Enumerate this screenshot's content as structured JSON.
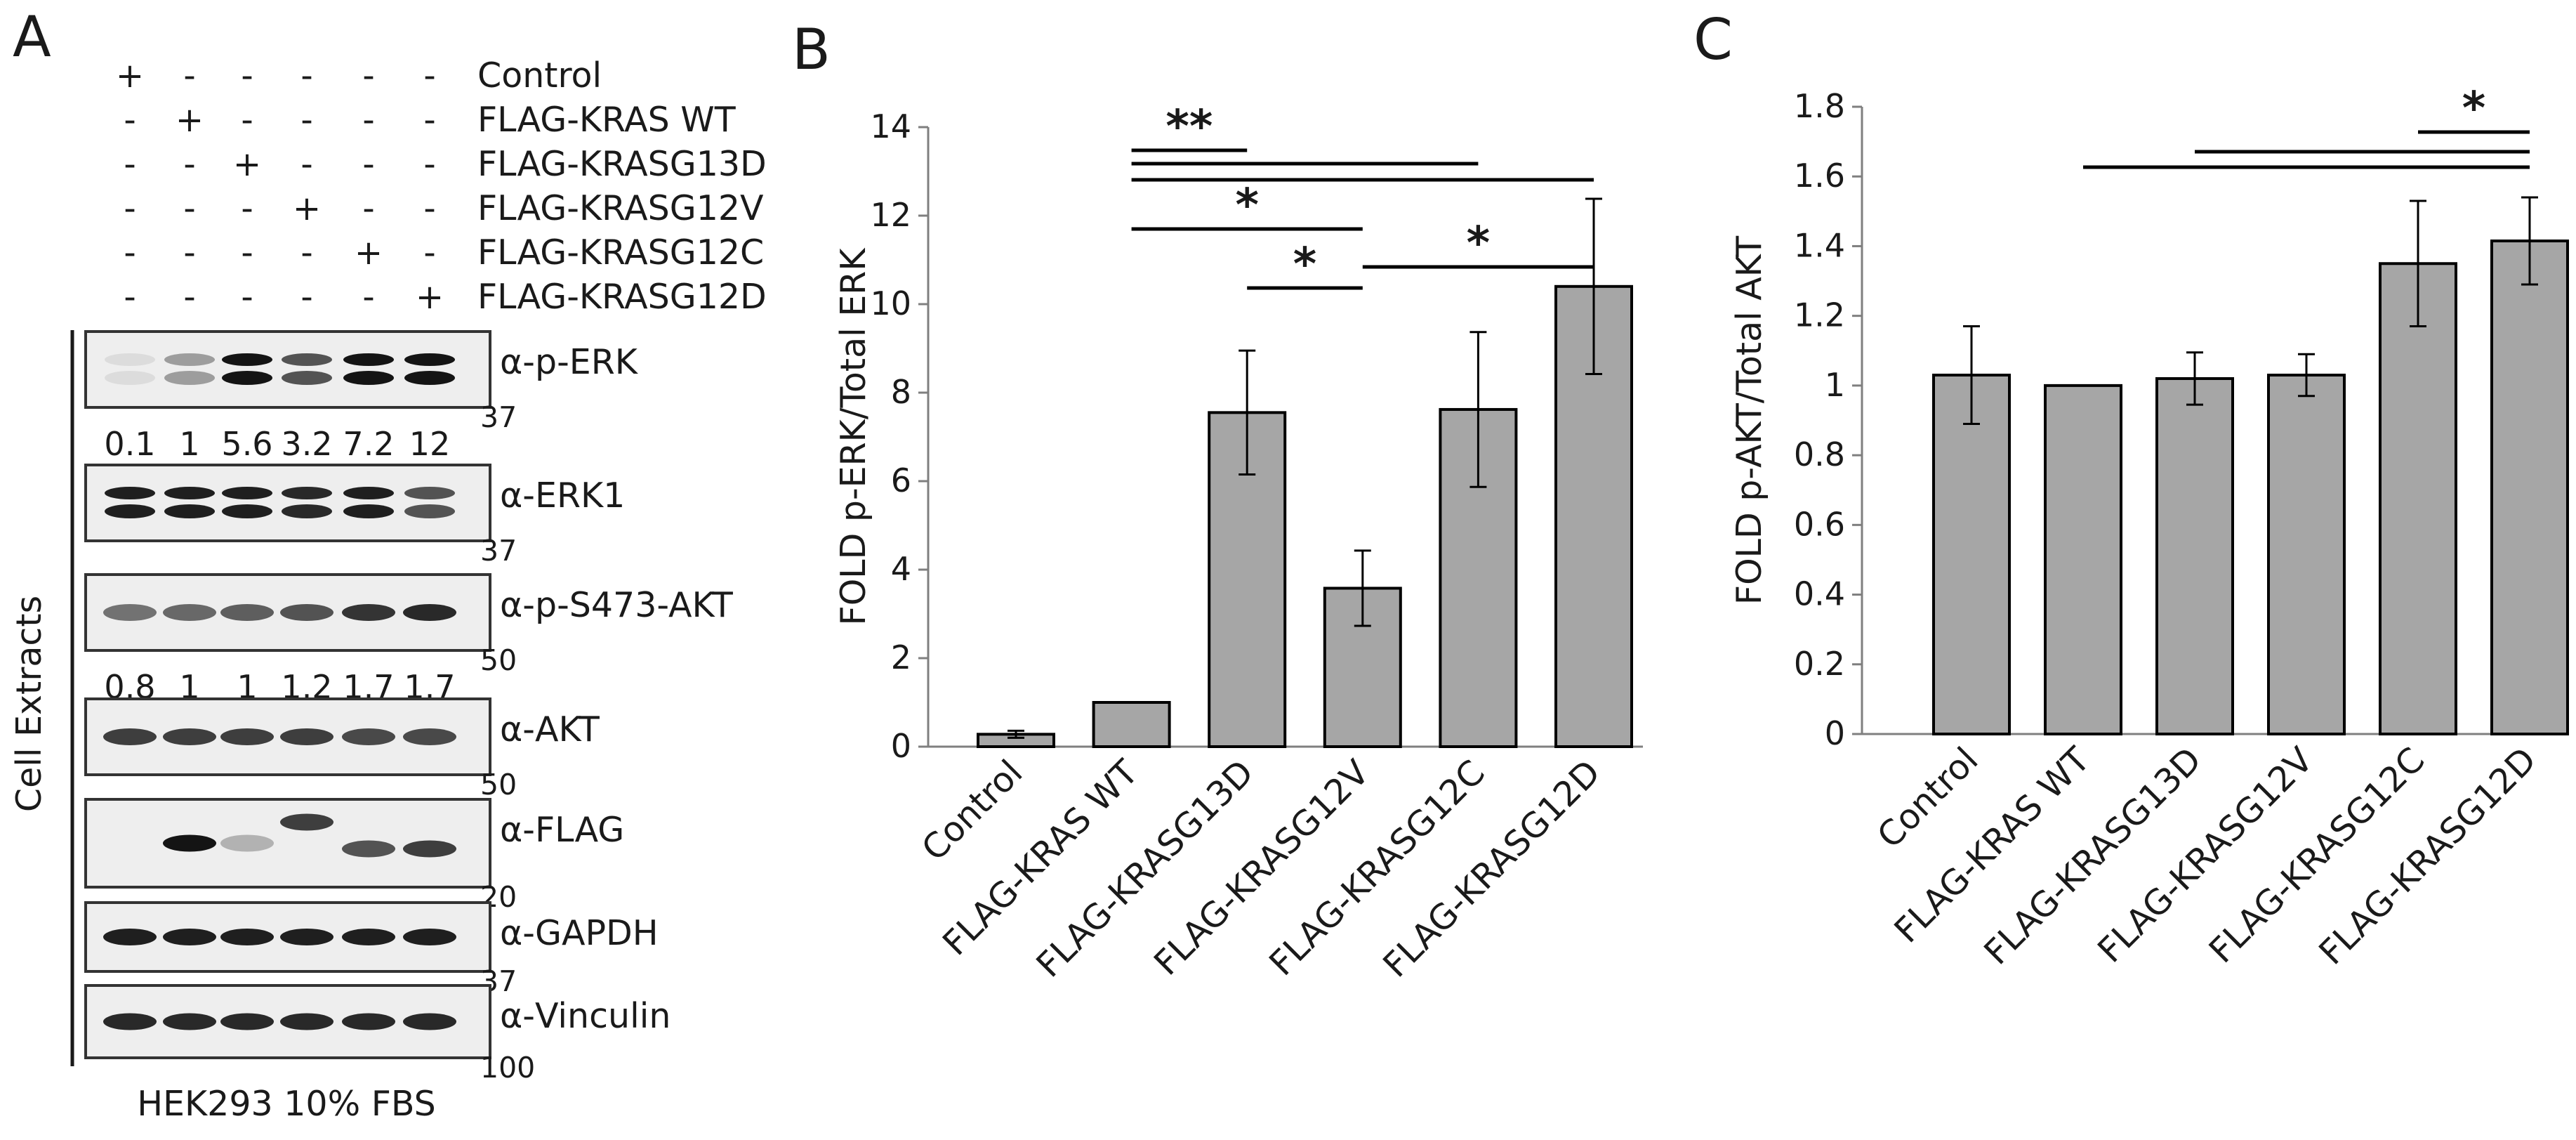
{
  "panel_labels": {
    "a": "A",
    "b": "B",
    "c": "C"
  },
  "blot": {
    "conditions": [
      "Control",
      "FLAG-KRAS WT",
      "FLAG-KRASG13D",
      "FLAG-KRASG12V",
      "FLAG-KRASG12C",
      "FLAG-KRASG12D"
    ],
    "matrix": [
      [
        "+",
        "-",
        "-",
        "-",
        "-",
        "-"
      ],
      [
        "-",
        "+",
        "-",
        "-",
        "-",
        "-"
      ],
      [
        "-",
        "-",
        "+",
        "-",
        "-",
        "-"
      ],
      [
        "-",
        "-",
        "-",
        "+",
        "-",
        "-"
      ],
      [
        "-",
        "-",
        "-",
        "-",
        "+",
        "-"
      ],
      [
        "-",
        "-",
        "-",
        "-",
        "-",
        "+"
      ]
    ],
    "side_label": "Cell Extracts",
    "footer": "HEK293 10% FBS",
    "strips": [
      {
        "label": "α-p-ERK",
        "mw": "37",
        "quant": [
          "0.1",
          "1",
          "5.6",
          "3.2",
          "7.2",
          "12"
        ],
        "intensity": [
          0.05,
          0.35,
          1,
          0.7,
          1,
          1
        ],
        "doublet": true
      },
      {
        "label": "α-ERK1",
        "mw": "37",
        "quant": null,
        "intensity": [
          0.95,
          0.95,
          0.95,
          0.9,
          0.95,
          0.7
        ],
        "doublet": true
      },
      {
        "label": "α-p-S473-AKT",
        "mw": "50",
        "quant": [
          "0.8",
          "1",
          "1",
          "1.2",
          "1.7",
          "1.7"
        ],
        "intensity": [
          0.55,
          0.6,
          0.65,
          0.7,
          0.85,
          0.9
        ],
        "doublet": false
      },
      {
        "label": "α-AKT",
        "mw": "50",
        "quant": null,
        "intensity": [
          0.8,
          0.8,
          0.8,
          0.8,
          0.75,
          0.75
        ],
        "doublet": false
      },
      {
        "label": "α-FLAG",
        "mw": "20",
        "quant": null,
        "intensity": [
          0,
          1,
          0.25,
          0.8,
          0.7,
          0.8
        ],
        "doublet": false
      },
      {
        "label": "α-GAPDH",
        "mw": "37",
        "quant": null,
        "intensity": [
          0.95,
          0.95,
          0.95,
          0.95,
          0.95,
          0.95
        ],
        "doublet": false
      },
      {
        "label": "α-Vinculin",
        "mw": "100",
        "quant": null,
        "intensity": [
          0.9,
          0.9,
          0.9,
          0.9,
          0.9,
          0.9
        ],
        "doublet": false
      }
    ]
  },
  "chart_data": [
    {
      "type": "bar",
      "panel": "B",
      "categories": [
        "Control",
        "FLAG-KRAS WT",
        "FLAG-KRASG13D",
        "FLAG-KRASG12V",
        "FLAG-KRASG12C",
        "FLAG-KRASG12D"
      ],
      "values": [
        0.28,
        1.0,
        7.55,
        3.58,
        7.62,
        10.4
      ],
      "errors": [
        0.08,
        0,
        1.4,
        0.85,
        1.75,
        1.98
      ],
      "ylabel": "FOLD p-ERK/Total ERK",
      "ylim": [
        0,
        14
      ],
      "yticks": [
        0,
        2,
        4,
        6,
        8,
        10,
        12,
        14
      ],
      "bar_color": "#a6a6a6",
      "significance": [
        {
          "from": 1,
          "to": 2,
          "label": "**"
        },
        {
          "from": 1,
          "to": 4,
          "label": ""
        },
        {
          "from": 1,
          "to": 5,
          "label": ""
        },
        {
          "from": 1,
          "to": 3,
          "label": "*"
        },
        {
          "from": 2,
          "to": 3,
          "label": "*"
        },
        {
          "from": 3,
          "to": 5,
          "label": "*"
        }
      ]
    },
    {
      "type": "bar",
      "panel": "C",
      "categories": [
        "Control",
        "FLAG-KRAS WT",
        "FLAG-KRASG13D",
        "FLAG-KRASG12V",
        "FLAG-KRASG12C",
        "FLAG-KRASG12D"
      ],
      "values": [
        1.03,
        1.0,
        1.02,
        1.03,
        1.35,
        1.415
      ],
      "errors": [
        0.14,
        0,
        0.075,
        0.06,
        0.18,
        0.125
      ],
      "ylabel": "FOLD p-AKT/Total AKT",
      "ylim": [
        0,
        1.8
      ],
      "yticks": [
        0,
        0.2,
        0.4,
        0.6,
        0.8,
        1,
        1.2,
        1.4,
        1.6,
        1.8
      ],
      "bar_color": "#a6a6a6",
      "significance": [
        {
          "from": 4,
          "to": 5,
          "label": "*"
        },
        {
          "from": 2,
          "to": 5,
          "label": ""
        },
        {
          "from": 1,
          "to": 5,
          "label": ""
        }
      ]
    }
  ]
}
